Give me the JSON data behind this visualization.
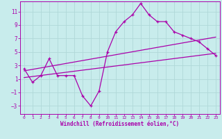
{
  "title": "",
  "xlabel": "Windchill (Refroidissement éolien,°C)",
  "ylabel": "",
  "bg_color": "#c8ecec",
  "grid_color": "#b0d8d8",
  "line_color": "#aa00aa",
  "xlim": [
    -0.5,
    23.5
  ],
  "ylim": [
    -4.2,
    12.5
  ],
  "yticks": [
    -3,
    -1,
    1,
    3,
    5,
    7,
    9,
    11
  ],
  "xticks": [
    0,
    1,
    2,
    3,
    4,
    5,
    6,
    7,
    8,
    9,
    10,
    11,
    12,
    13,
    14,
    15,
    16,
    17,
    18,
    19,
    20,
    21,
    22,
    23
  ],
  "data_x": [
    0,
    1,
    2,
    3,
    4,
    5,
    6,
    7,
    8,
    9,
    10,
    11,
    12,
    13,
    14,
    15,
    16,
    17,
    18,
    19,
    20,
    21,
    22,
    23
  ],
  "data_y": [
    2.5,
    0.5,
    1.5,
    4.0,
    1.5,
    1.5,
    1.5,
    -1.5,
    -3.0,
    -0.8,
    5.0,
    8.0,
    9.5,
    10.5,
    12.2,
    10.5,
    9.5,
    9.5,
    8.0,
    7.5,
    7.0,
    6.5,
    5.5,
    4.5
  ],
  "trend1_x": [
    0,
    23
  ],
  "trend1_y": [
    2.2,
    7.2
  ],
  "trend2_x": [
    0,
    23
  ],
  "trend2_y": [
    1.2,
    4.8
  ]
}
